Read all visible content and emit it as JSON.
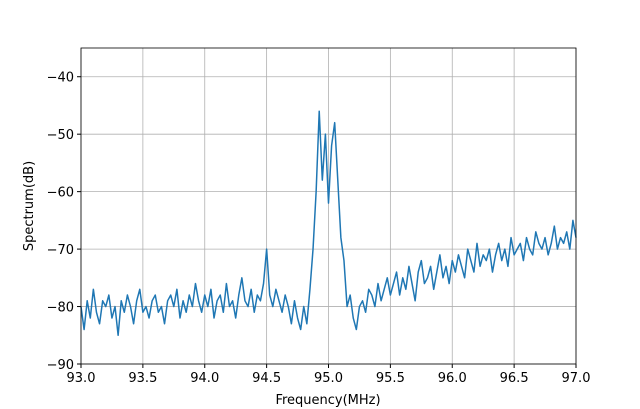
{
  "chart_data": {
    "type": "line",
    "x_label": "Frequency(MHz)",
    "y_label": "Spectrum(dB)",
    "x": [
      93,
      93.025,
      93.05,
      93.075,
      93.1,
      93.125,
      93.15,
      93.175,
      93.2,
      93.225,
      93.25,
      93.275,
      93.3,
      93.325,
      93.35,
      93.375,
      93.4,
      93.425,
      93.45,
      93.475,
      93.5,
      93.525,
      93.55,
      93.575,
      93.6,
      93.625,
      93.65,
      93.675,
      93.7,
      93.725,
      93.75,
      93.775,
      93.8,
      93.825,
      93.85,
      93.875,
      93.9,
      93.925,
      93.95,
      93.975,
      94,
      94.025,
      94.05,
      94.075,
      94.1,
      94.125,
      94.15,
      94.175,
      94.2,
      94.225,
      94.25,
      94.275,
      94.3,
      94.325,
      94.35,
      94.375,
      94.4,
      94.425,
      94.45,
      94.475,
      94.5,
      94.525,
      94.55,
      94.575,
      94.6,
      94.625,
      94.65,
      94.675,
      94.7,
      94.725,
      94.75,
      94.775,
      94.8,
      94.825,
      94.85,
      94.875,
      94.9,
      94.925,
      94.95,
      94.975,
      95,
      95.025,
      95.05,
      95.075,
      95.1,
      95.125,
      95.15,
      95.175,
      95.2,
      95.225,
      95.25,
      95.275,
      95.3,
      95.325,
      95.35,
      95.375,
      95.4,
      95.425,
      95.45,
      95.475,
      95.5,
      95.525,
      95.55,
      95.575,
      95.6,
      95.625,
      95.65,
      95.675,
      95.7,
      95.725,
      95.75,
      95.775,
      95.8,
      95.825,
      95.85,
      95.875,
      95.9,
      95.925,
      95.95,
      95.975,
      96,
      96.025,
      96.05,
      96.075,
      96.1,
      96.125,
      96.15,
      96.175,
      96.2,
      96.225,
      96.25,
      96.275,
      96.3,
      96.325,
      96.35,
      96.375,
      96.4,
      96.425,
      96.45,
      96.475,
      96.5,
      96.525,
      96.55,
      96.575,
      96.6,
      96.625,
      96.65,
      96.675,
      96.7,
      96.725,
      96.75,
      96.775,
      96.8,
      96.825,
      96.85,
      96.875,
      96.9,
      96.925,
      96.95,
      96.975,
      97
    ],
    "series": [
      {
        "color": "#1f77b4",
        "values": [
          -80,
          -84,
          -79,
          -82,
          -77,
          -81,
          -83,
          -79,
          -80,
          -78,
          -82,
          -80,
          -85,
          -79,
          -81,
          -78,
          -80,
          -83,
          -79,
          -77,
          -81,
          -80,
          -82,
          -79,
          -78,
          -81,
          -80,
          -83,
          -79,
          -78,
          -80,
          -77,
          -82,
          -79,
          -81,
          -78,
          -80,
          -76,
          -79,
          -81,
          -78,
          -80,
          -77,
          -82,
          -79,
          -78,
          -81,
          -76,
          -80,
          -79,
          -82,
          -78,
          -75,
          -79,
          -80,
          -77,
          -81,
          -78,
          -79,
          -76,
          -70,
          -78,
          -80,
          -77,
          -79,
          -81,
          -78,
          -80,
          -83,
          -79,
          -82,
          -84,
          -80,
          -83,
          -77,
          -70,
          -60,
          -46,
          -58,
          -50,
          -62,
          -52,
          -48,
          -58,
          -68,
          -72,
          -80,
          -78,
          -82,
          -84,
          -80,
          -79,
          -81,
          -77,
          -78,
          -80,
          -76,
          -79,
          -77,
          -75,
          -78,
          -76,
          -74,
          -78,
          -75,
          -77,
          -73,
          -76,
          -79,
          -74,
          -72,
          -76,
          -75,
          -73,
          -77,
          -74,
          -71,
          -75,
          -73,
          -76,
          -72,
          -74,
          -71,
          -73,
          -75,
          -70,
          -72,
          -74,
          -69,
          -73,
          -71,
          -72,
          -70,
          -74,
          -71,
          -69,
          -72,
          -70,
          -73,
          -68,
          -71,
          -70,
          -69,
          -72,
          -68,
          -70,
          -71,
          -67,
          -69,
          -70,
          -68,
          -71,
          -69,
          -66,
          -70,
          -68,
          -69,
          -67,
          -70,
          -65,
          -68
        ]
      }
    ],
    "xlim": [
      93,
      97
    ],
    "xticks": [
      {
        "value": 93,
        "label": "93.0"
      },
      {
        "value": 93.5,
        "label": "93.5"
      },
      {
        "value": 94,
        "label": "94.0"
      },
      {
        "value": 94.5,
        "label": "94.5"
      },
      {
        "value": 95,
        "label": "95.0"
      },
      {
        "value": 95.5,
        "label": "95.5"
      },
      {
        "value": 96,
        "label": "96.0"
      },
      {
        "value": 96.5,
        "label": "96.5"
      },
      {
        "value": 97,
        "label": "97.0"
      }
    ],
    "ylim": [
      -90,
      -35
    ],
    "yticks": [
      {
        "value": -90,
        "label": "−90"
      },
      {
        "value": -80,
        "label": "−80"
      },
      {
        "value": -70,
        "label": "−70"
      },
      {
        "value": -60,
        "label": "−60"
      },
      {
        "value": -50,
        "label": "−50"
      },
      {
        "value": -40,
        "label": "−40"
      }
    ],
    "grid": true
  }
}
